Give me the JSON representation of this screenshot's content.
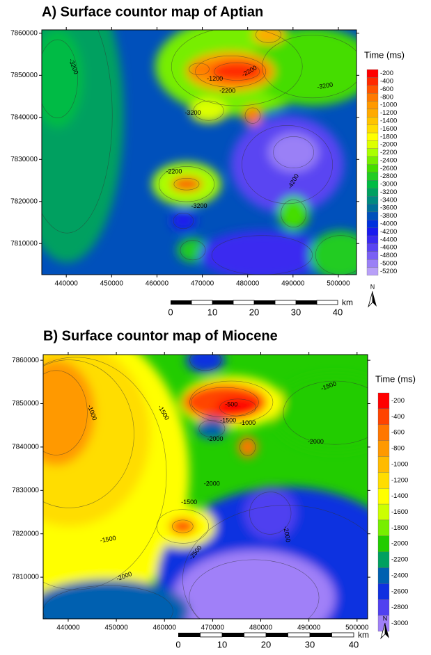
{
  "panels": [
    {
      "title": "A) Surface countor map of Aptian",
      "xlim": [
        434600,
        504000
      ],
      "ylim": [
        7802600,
        7860800
      ],
      "xticks": [
        440000,
        450000,
        460000,
        470000,
        480000,
        490000,
        500000
      ],
      "yticks": [
        7810000,
        7820000,
        7830000,
        7840000,
        7850000,
        7860000
      ],
      "legend_title": "Time (ms)",
      "legend_levels": [
        -200,
        -400,
        -600,
        -800,
        -1000,
        -1200,
        -1400,
        -1600,
        -1800,
        -2000,
        -2200,
        -2400,
        -2600,
        -2800,
        -3000,
        -3200,
        -3400,
        -3600,
        -3800,
        -4000,
        -4200,
        -4400,
        -4600,
        -4800,
        -5000,
        -5200
      ],
      "legend_colors": [
        "#ff0000",
        "#ff2a00",
        "#ff5500",
        "#ff7a00",
        "#ff9900",
        "#ffaa00",
        "#ffc400",
        "#ffdd00",
        "#ffff00",
        "#ddff00",
        "#aaff00",
        "#77ee00",
        "#44dd00",
        "#22cc22",
        "#00bb44",
        "#00a060",
        "#008a80",
        "#006f99",
        "#0050bb",
        "#0030dd",
        "#1a1aee",
        "#3a2af0",
        "#5a44f2",
        "#7a60f4",
        "#9a80f6",
        "#b8a0f8"
      ],
      "contour_labels": [
        -3200,
        -1200,
        -2200,
        -2200,
        -3200,
        -3200,
        -2200,
        -3200,
        -4200
      ],
      "scale_labels": [
        0,
        10,
        20,
        30,
        40
      ],
      "scale_unit": "km",
      "north": "N"
    },
    {
      "title": "B) Surface countor map of Miocene",
      "xlim": [
        434800,
        502200
      ],
      "ylim": [
        7800400,
        7861300
      ],
      "xticks": [
        440000,
        450000,
        460000,
        470000,
        480000,
        490000,
        500000
      ],
      "yticks": [
        7810000,
        7820000,
        7830000,
        7840000,
        7850000,
        7860000
      ],
      "legend_title": "Time (ms)",
      "legend_levels": [
        -200,
        -400,
        -600,
        -800,
        -1000,
        -1200,
        -1400,
        -1600,
        -1800,
        -2000,
        -2200,
        -2400,
        -2600,
        -2800,
        -3000
      ],
      "legend_colors": [
        "#ff0000",
        "#ff4400",
        "#ff7700",
        "#ff9900",
        "#ffbb00",
        "#ffdd00",
        "#ffff00",
        "#ccff00",
        "#77ee00",
        "#22cc00",
        "#00a060",
        "#0060b0",
        "#1030e0",
        "#5040f0",
        "#a080f8"
      ],
      "contour_labels": [
        -1000,
        -1500,
        -500,
        -1000,
        -1500,
        -2000,
        -1500,
        -2000,
        -2000,
        -1500,
        -1500,
        -2000,
        -2500,
        -2000
      ],
      "scale_labels": [
        0,
        10,
        20,
        30,
        40
      ],
      "scale_unit": "km",
      "north": "N"
    }
  ]
}
